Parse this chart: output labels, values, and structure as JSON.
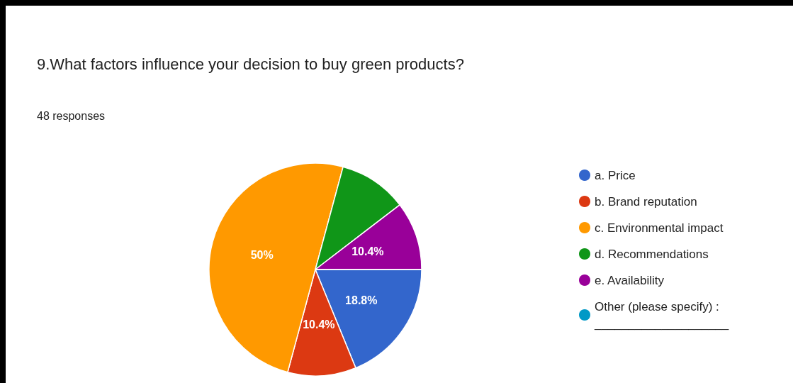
{
  "chart_data": {
    "type": "pie",
    "title": "9.What factors influence your decision to buy green products?",
    "subtitle": "48 responses",
    "categories": [
      "a. Price",
      "b. Brand reputation",
      "c. Environmental impact",
      "d. Recommendations",
      "e. Availability",
      "Other (please specify) :\n____________________"
    ],
    "values": [
      18.8,
      10.4,
      50,
      10.4,
      10.4,
      0
    ],
    "colors": [
      "#3366cc",
      "#dc3912",
      "#ff9900",
      "#109618",
      "#990099",
      "#0099c6"
    ],
    "value_labels": [
      "18.8%",
      "10.4%",
      "50%",
      null,
      "10.4%",
      null
    ],
    "legend": "right"
  }
}
